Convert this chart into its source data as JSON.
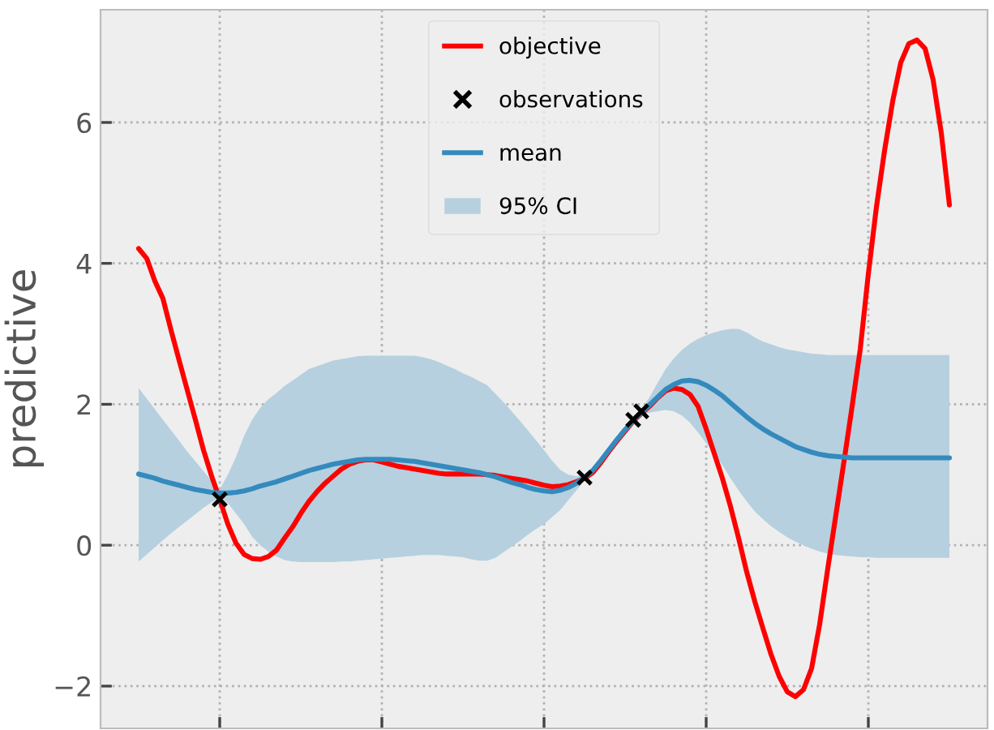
{
  "chart_data": {
    "type": "line",
    "ylabel": "predictive",
    "categories": [
      null,
      null,
      null,
      null,
      null,
      null,
      null,
      null,
      null,
      null,
      null,
      null,
      null,
      null,
      null,
      null,
      null,
      null,
      null,
      null,
      null,
      null,
      null,
      null,
      null,
      null,
      null,
      null,
      null,
      null,
      null,
      null,
      null,
      null,
      null,
      null,
      null,
      null,
      null,
      null,
      null,
      null,
      null,
      null,
      null,
      null,
      null,
      null,
      null,
      null,
      null,
      null,
      null,
      null,
      null,
      null,
      null,
      null,
      null,
      null,
      null,
      null,
      null,
      null,
      null,
      null,
      null,
      null,
      null,
      null,
      null,
      null,
      null,
      null,
      null,
      null,
      null,
      null,
      null,
      null,
      null,
      null,
      null,
      null,
      null,
      null,
      null,
      null,
      null,
      null,
      null,
      null,
      null,
      null,
      null,
      null,
      null,
      null,
      null,
      null,
      null
    ],
    "ylim": [
      -2.6,
      7.6
    ],
    "yticks": [
      {
        "value": -2,
        "label": "−2"
      },
      {
        "value": 0,
        "label": "0"
      },
      {
        "value": 2,
        "label": "2"
      },
      {
        "value": 4,
        "label": "4"
      },
      {
        "value": 6,
        "label": "6"
      }
    ],
    "tick_labels": "y",
    "grid": true,
    "legend": "top",
    "series": [
      {
        "name": "objective",
        "color": "#ff0000",
        "values": [
          4.21,
          4.07,
          3.75,
          3.5,
          3.05,
          2.62,
          2.2,
          1.78,
          1.35,
          0.98,
          0.65,
          0.3,
          0.03,
          -0.13,
          -0.19,
          -0.2,
          -0.16,
          -0.07,
          0.1,
          0.26,
          0.45,
          0.62,
          0.76,
          0.88,
          0.98,
          1.08,
          1.15,
          1.19,
          1.21,
          1.21,
          1.18,
          1.15,
          1.12,
          1.1,
          1.08,
          1.06,
          1.04,
          1.02,
          1.01,
          1.01,
          1.01,
          1.01,
          1.01,
          1.0,
          0.99,
          0.97,
          0.95,
          0.93,
          0.91,
          0.88,
          0.85,
          0.83,
          0.84,
          0.86,
          0.9,
          0.95,
          1.03,
          1.17,
          1.33,
          1.48,
          1.62,
          1.76,
          1.87,
          1.97,
          2.09,
          2.19,
          2.23,
          2.21,
          2.14,
          1.97,
          1.65,
          1.3,
          0.95,
          0.55,
          0.1,
          -0.38,
          -0.8,
          -1.18,
          -1.55,
          -1.86,
          -2.08,
          -2.15,
          -2.05,
          -1.75,
          -1.12,
          -0.33,
          0.43,
          1.19,
          1.97,
          2.78,
          3.85,
          4.8,
          5.6,
          6.3,
          6.85,
          7.12,
          7.17,
          7.05,
          6.6,
          5.85,
          4.83
        ]
      },
      {
        "name": "observations",
        "type": "scatter",
        "color": "#000000",
        "marker": "cross",
        "values": [
          null,
          null,
          null,
          null,
          null,
          null,
          null,
          null,
          null,
          null,
          0.65,
          null,
          null,
          null,
          null,
          null,
          null,
          null,
          null,
          null,
          null,
          null,
          null,
          null,
          null,
          null,
          null,
          null,
          null,
          null,
          null,
          null,
          null,
          null,
          null,
          null,
          null,
          null,
          null,
          null,
          null,
          null,
          null,
          null,
          null,
          null,
          null,
          null,
          null,
          null,
          null,
          null,
          null,
          null,
          null,
          0.96,
          null,
          null,
          null,
          null,
          null,
          1.78,
          1.9,
          null,
          null,
          null,
          null,
          null,
          null,
          null,
          null,
          null,
          null,
          null,
          null,
          null,
          null,
          null,
          null,
          null,
          null,
          null,
          null,
          null,
          null,
          null,
          null,
          null,
          null,
          null,
          null,
          null,
          null,
          null,
          null,
          null,
          null,
          null,
          null,
          null,
          null
        ]
      },
      {
        "name": "mean",
        "color": "#348abd",
        "values": [
          1.01,
          0.98,
          0.95,
          0.91,
          0.88,
          0.85,
          0.82,
          0.79,
          0.77,
          0.75,
          0.74,
          0.74,
          0.75,
          0.77,
          0.8,
          0.84,
          0.87,
          0.9,
          0.94,
          0.98,
          1.02,
          1.06,
          1.09,
          1.12,
          1.15,
          1.17,
          1.19,
          1.21,
          1.22,
          1.22,
          1.22,
          1.22,
          1.21,
          1.2,
          1.19,
          1.17,
          1.15,
          1.13,
          1.11,
          1.09,
          1.07,
          1.05,
          1.03,
          1.0,
          0.97,
          0.93,
          0.89,
          0.86,
          0.82,
          0.79,
          0.77,
          0.76,
          0.78,
          0.82,
          0.88,
          0.96,
          1.06,
          1.2,
          1.35,
          1.5,
          1.64,
          1.77,
          1.88,
          1.99,
          2.1,
          2.21,
          2.28,
          2.33,
          2.34,
          2.32,
          2.27,
          2.2,
          2.12,
          2.02,
          1.92,
          1.82,
          1.73,
          1.65,
          1.58,
          1.52,
          1.46,
          1.4,
          1.36,
          1.32,
          1.29,
          1.27,
          1.26,
          1.25,
          1.24,
          1.24,
          1.24,
          1.24,
          1.24,
          1.24,
          1.24,
          1.24,
          1.24,
          1.24,
          1.24,
          1.24,
          1.24
        ]
      },
      {
        "name": "95% CI",
        "color": "#b6d0df",
        "values": [
          null,
          null,
          null,
          null,
          null,
          null,
          null,
          null,
          null,
          null,
          null,
          null,
          null,
          null,
          null,
          null,
          null,
          null,
          null,
          null,
          null,
          null,
          null,
          null,
          null,
          null,
          null,
          null,
          null,
          null,
          null,
          null,
          null,
          null,
          null,
          null,
          null,
          null,
          null,
          null,
          null,
          null,
          null,
          null,
          null,
          null,
          null,
          null,
          null,
          null,
          null,
          null,
          null,
          null,
          null,
          null,
          null,
          null,
          null,
          null,
          null,
          null,
          null,
          null,
          null,
          null,
          null,
          null,
          null,
          null,
          null,
          null,
          null,
          null,
          null,
          null,
          null,
          null,
          null,
          null,
          null,
          null,
          null,
          null,
          null,
          null,
          null,
          null,
          null,
          null,
          null,
          null,
          null,
          null,
          null,
          null,
          null,
          null,
          null,
          null,
          null
        ],
        "upper": [
          2.23,
          2.08,
          1.93,
          1.78,
          1.63,
          1.48,
          1.33,
          1.19,
          1.05,
          0.91,
          0.79,
          1.0,
          1.25,
          1.55,
          1.78,
          1.95,
          2.07,
          2.16,
          2.26,
          2.34,
          2.42,
          2.5,
          2.54,
          2.58,
          2.62,
          2.64,
          2.66,
          2.68,
          2.69,
          2.69,
          2.69,
          2.69,
          2.69,
          2.69,
          2.69,
          2.67,
          2.64,
          2.6,
          2.55,
          2.5,
          2.44,
          2.39,
          2.33,
          2.27,
          2.15,
          2.03,
          1.9,
          1.77,
          1.63,
          1.49,
          1.35,
          1.2,
          1.07,
          1.0,
          0.98,
          1.0,
          1.1,
          1.25,
          1.4,
          1.55,
          1.68,
          1.8,
          1.92,
          2.1,
          2.3,
          2.5,
          2.65,
          2.77,
          2.86,
          2.93,
          2.98,
          3.02,
          3.05,
          3.07,
          3.07,
          3.02,
          2.95,
          2.89,
          2.85,
          2.81,
          2.78,
          2.76,
          2.74,
          2.72,
          2.71,
          2.7,
          2.7,
          2.7,
          2.7,
          2.7,
          2.7,
          2.7,
          2.7,
          2.7,
          2.7,
          2.7,
          2.7,
          2.7,
          2.7,
          2.7,
          2.7
        ],
        "lower": [
          -0.23,
          -0.13,
          -0.03,
          0.07,
          0.17,
          0.26,
          0.35,
          0.44,
          0.53,
          0.61,
          0.69,
          0.6,
          0.45,
          0.3,
          0.12,
          0.0,
          -0.09,
          -0.16,
          -0.21,
          -0.23,
          -0.24,
          -0.24,
          -0.24,
          -0.24,
          -0.24,
          -0.23,
          -0.23,
          -0.22,
          -0.21,
          -0.2,
          -0.19,
          -0.18,
          -0.17,
          -0.16,
          -0.15,
          -0.14,
          -0.14,
          -0.14,
          -0.15,
          -0.16,
          -0.17,
          -0.2,
          -0.22,
          -0.22,
          -0.18,
          -0.1,
          -0.02,
          0.06,
          0.15,
          0.23,
          0.3,
          0.4,
          0.5,
          0.64,
          0.78,
          0.92,
          1.02,
          1.15,
          1.3,
          1.45,
          1.6,
          1.74,
          1.84,
          1.88,
          1.9,
          1.92,
          1.9,
          1.84,
          1.74,
          1.6,
          1.45,
          1.3,
          1.14,
          0.95,
          0.78,
          0.62,
          0.48,
          0.37,
          0.27,
          0.19,
          0.11,
          0.05,
          0.0,
          -0.05,
          -0.09,
          -0.12,
          -0.14,
          -0.15,
          -0.16,
          -0.17,
          -0.17,
          -0.18,
          -0.18,
          -0.18,
          -0.18,
          -0.18,
          -0.18,
          -0.18,
          -0.18,
          -0.18,
          -0.18
        ]
      }
    ]
  }
}
